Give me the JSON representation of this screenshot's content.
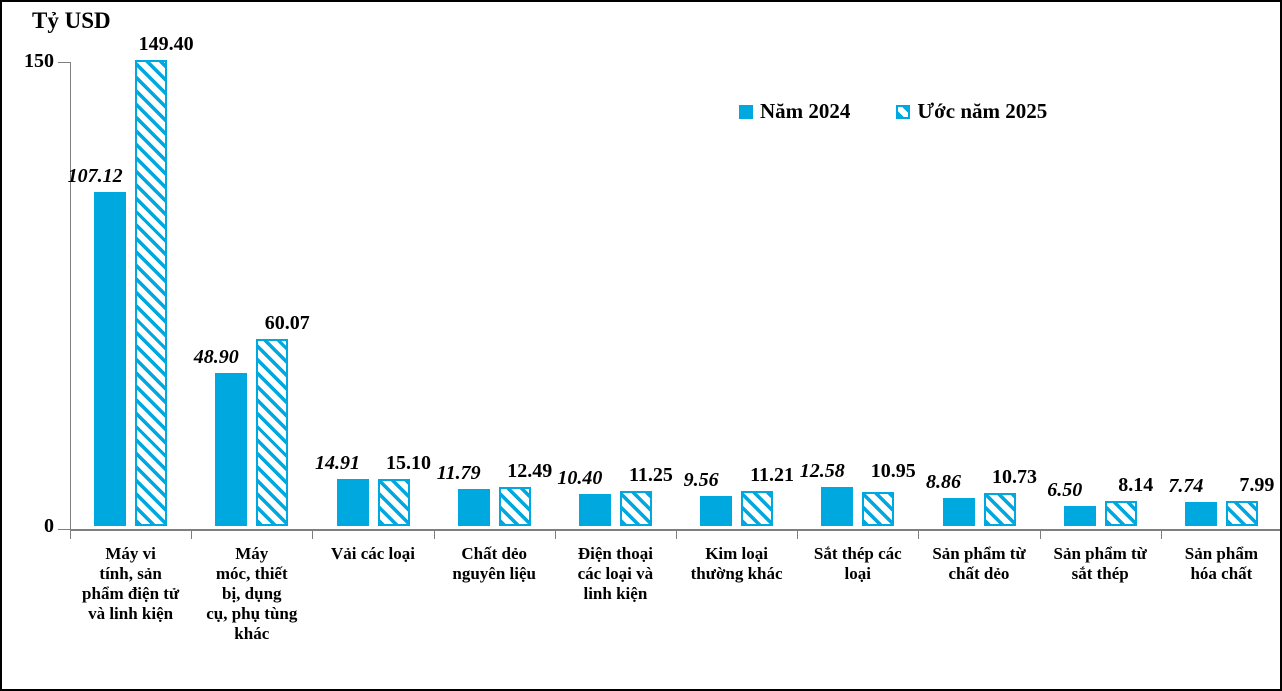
{
  "title": "Tỷ USD",
  "colors": {
    "bar_blue": "#00A8E0",
    "axis_gray": "#7f7f7f",
    "text": "#000000"
  },
  "legend": {
    "items": [
      {
        "label": "Năm 2024",
        "style": "solid"
      },
      {
        "label": "Ước năm 2025",
        "style": "hatch"
      }
    ]
  },
  "y_axis": {
    "top_label": "150",
    "bottom_label": "0"
  },
  "chart_data": {
    "type": "bar",
    "title": "Tỷ USD",
    "ylabel": "Tỷ USD",
    "xlabel": "",
    "ylim": [
      0,
      150
    ],
    "y_tick_labels": [
      "0",
      "150"
    ],
    "grid": false,
    "legend_position": "top-right",
    "categories": [
      "Máy vi tính, sản phẩm điện tử và linh kiện",
      "Máy móc, thiết bị, dụng cụ, phụ tùng khác",
      "Vải các loại",
      "Chất dẻo nguyên liệu",
      "Điện thoại các loại và linh kiện",
      "Kim loại thường khác",
      "Sắt thép các loại",
      "Sản phẩm từ chất dẻo",
      "Sản phẩm từ sắt thép",
      "Sản phẩm hóa chất"
    ],
    "category_lines": [
      [
        "Máy vi",
        "tính, sản",
        "phẩm điện tử",
        "và linh kiện"
      ],
      [
        "Máy",
        "móc, thiết",
        "bị, dụng",
        "cụ, phụ tùng",
        "khác"
      ],
      [
        "Vải các loại"
      ],
      [
        "Chất dẻo",
        "nguyên liệu"
      ],
      [
        "Điện thoại",
        "các loại và",
        "linh kiện"
      ],
      [
        "Kim loại",
        "thường khác"
      ],
      [
        "Sắt thép các",
        "loại"
      ],
      [
        "Sản phẩm từ",
        "chất dẻo"
      ],
      [
        "Sản phẩm từ",
        "sắt thép"
      ],
      [
        "Sản phẩm",
        "hóa chất"
      ]
    ],
    "series": [
      {
        "name": "Năm 2024",
        "values": [
          107.12,
          48.9,
          14.91,
          11.79,
          10.4,
          9.56,
          12.58,
          8.86,
          6.5,
          7.74
        ],
        "labels": [
          "107.12",
          "48.90",
          "14.91",
          "11.79",
          "10.40",
          "9.56",
          "12.58",
          "8.86",
          "6.50",
          "7.74"
        ]
      },
      {
        "name": "Ước năm 2025",
        "values": [
          149.4,
          60.07,
          15.1,
          12.49,
          11.25,
          11.21,
          10.95,
          10.73,
          8.14,
          7.99
        ],
        "labels": [
          "149.40",
          "60.07",
          "15.10",
          "12.49",
          "11.25",
          "11.21",
          "10.95",
          "10.73",
          "8.14",
          "7.99"
        ]
      }
    ]
  }
}
